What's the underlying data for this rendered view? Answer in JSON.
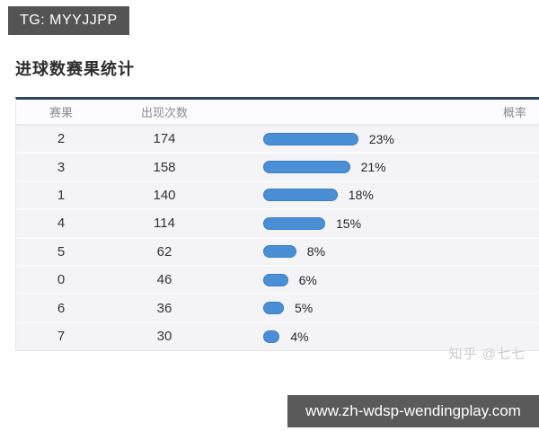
{
  "tg_badge": {
    "label": "TG: MYYJJPP"
  },
  "page": {
    "title": "进球数赛果统计"
  },
  "table": {
    "headers": {
      "result": "赛果",
      "count": "出现次数",
      "probability": "概率"
    },
    "rows": [
      {
        "result": "2",
        "count": "174",
        "pct": 23,
        "pct_label": "23%"
      },
      {
        "result": "3",
        "count": "158",
        "pct": 21,
        "pct_label": "21%"
      },
      {
        "result": "1",
        "count": "140",
        "pct": 18,
        "pct_label": "18%"
      },
      {
        "result": "4",
        "count": "114",
        "pct": 15,
        "pct_label": "15%"
      },
      {
        "result": "5",
        "count": "62",
        "pct": 8,
        "pct_label": "8%"
      },
      {
        "result": "0",
        "count": "46",
        "pct": 6,
        "pct_label": "6%"
      },
      {
        "result": "6",
        "count": "36",
        "pct": 5,
        "pct_label": "5%"
      },
      {
        "result": "7",
        "count": "30",
        "pct": 4,
        "pct_label": "4%"
      }
    ]
  },
  "watermark": {
    "text": "知乎 @七七"
  },
  "footer": {
    "url": "www.zh-wdsp-wendingplay.com"
  },
  "colors": {
    "bar": "#4a8fd6",
    "bar_border": "#3a7dc8",
    "table_top_border": "#31445f",
    "badge_bg": "#545454",
    "footer_bg": "#5a5a5a"
  },
  "chart_data": {
    "type": "bar",
    "orientation": "horizontal",
    "title": "进球数赛果统计",
    "categories": [
      "2",
      "3",
      "1",
      "4",
      "5",
      "0",
      "6",
      "7"
    ],
    "series": [
      {
        "name": "出现次数",
        "values": [
          174,
          158,
          140,
          114,
          62,
          46,
          36,
          30
        ]
      },
      {
        "name": "概率(%)",
        "values": [
          23,
          21,
          18,
          15,
          8,
          6,
          5,
          4
        ]
      }
    ],
    "xlabel": "概率",
    "ylabel": "赛果",
    "legend": false,
    "grid": false
  }
}
